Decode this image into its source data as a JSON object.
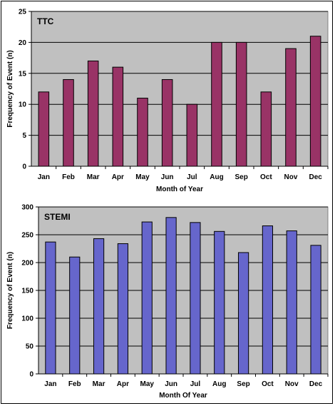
{
  "chart_data": [
    {
      "type": "bar",
      "title": "TTC",
      "xlabel": "Month of Year",
      "ylabel": "Frequency of Event (n)",
      "ylim": [
        0,
        25
      ],
      "yticks": [
        0,
        5,
        10,
        15,
        20,
        25
      ],
      "categories": [
        "Jan",
        "Feb",
        "Mar",
        "Apr",
        "May",
        "Jun",
        "Jul",
        "Aug",
        "Sep",
        "Oct",
        "Nov",
        "Dec"
      ],
      "values": [
        12,
        14,
        17,
        16,
        11,
        14,
        10,
        20,
        20,
        12,
        19,
        21
      ],
      "bar_color": "#993366",
      "plot_bg": "#c0c0c0",
      "grid": true,
      "legend": "none"
    },
    {
      "type": "bar",
      "title": "STEMI",
      "xlabel": "Month Of Year",
      "ylabel": "Frequency of Event (n)",
      "ylim": [
        0,
        300
      ],
      "yticks": [
        0,
        50,
        100,
        150,
        200,
        250,
        300
      ],
      "categories": [
        "Jan",
        "Feb",
        "Mar",
        "Apr",
        "May",
        "Jun",
        "Jul",
        "Aug",
        "Sep",
        "Oct",
        "Nov",
        "Dec"
      ],
      "values": [
        237,
        210,
        243,
        234,
        273,
        281,
        272,
        256,
        218,
        266,
        257,
        231
      ],
      "bar_color": "#6666cc",
      "plot_bg": "#c0c0c0",
      "grid": true,
      "legend": "none"
    }
  ]
}
